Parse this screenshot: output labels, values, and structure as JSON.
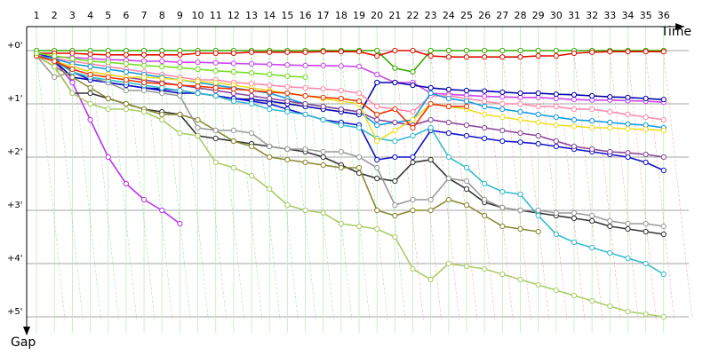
{
  "chart_data": {
    "type": "line",
    "x_label": "Time",
    "y_label": "Gap",
    "x": [
      1,
      2,
      3,
      4,
      5,
      6,
      7,
      8,
      9,
      10,
      11,
      12,
      13,
      14,
      15,
      16,
      17,
      18,
      19,
      20,
      21,
      22,
      23,
      24,
      25,
      26,
      27,
      28,
      29,
      30,
      31,
      32,
      33,
      34,
      35,
      36
    ],
    "xlim": [
      0.45,
      37.4
    ],
    "xticks": [
      1,
      2,
      3,
      4,
      5,
      6,
      7,
      8,
      9,
      10,
      11,
      12,
      13,
      14,
      15,
      16,
      17,
      18,
      19,
      20,
      21,
      22,
      23,
      24,
      25,
      26,
      27,
      28,
      29,
      30,
      31,
      32,
      33,
      34,
      35,
      36
    ],
    "ylim": [
      -0.65,
      5.3
    ],
    "yticks": [
      {
        "value": 0,
        "label": "+0'"
      },
      {
        "value": 1,
        "label": "+1'"
      },
      {
        "value": 2,
        "label": "+2'"
      },
      {
        "value": 3,
        "label": "+3'"
      },
      {
        "value": 4,
        "label": "+4'"
      },
      {
        "value": 5,
        "label": "+5'"
      }
    ],
    "grid": true,
    "series": [
      {
        "color": "#33aa00",
        "values": [
          0,
          0,
          0,
          0,
          0,
          0,
          0,
          0,
          0,
          0,
          0,
          0,
          0,
          0,
          0,
          0,
          0,
          0,
          0,
          0,
          0.33,
          0.4,
          0,
          0,
          0,
          0,
          0,
          0,
          0,
          0,
          0,
          0,
          0,
          0,
          0,
          0
        ]
      },
      {
        "color": "#dd1100",
        "values": [
          0.05,
          0.05,
          0.05,
          0.07,
          0.08,
          0.08,
          0.08,
          0.08,
          0.08,
          0.05,
          0.05,
          0.05,
          0.03,
          0.03,
          0.03,
          0.03,
          0.02,
          0.02,
          0.02,
          0.1,
          0,
          0,
          0.1,
          0.12,
          0.12,
          0.12,
          0.12,
          0.12,
          0.1,
          0.1,
          0.05,
          0.03,
          0.02,
          0.02,
          0.02,
          0.02
        ]
      },
      {
        "color": "#cc44ee",
        "values": [
          0.1,
          0.12,
          0.13,
          0.15,
          0.17,
          0.18,
          0.2,
          0.2,
          0.22,
          0.22,
          0.23,
          0.24,
          0.25,
          0.26,
          0.27,
          0.28,
          0.28,
          0.29,
          0.3,
          0.45,
          0.6,
          0.6,
          0.8,
          0.82,
          0.84,
          0.86,
          0.87,
          0.88,
          0.88,
          0.9,
          0.92,
          0.93,
          0.93,
          0.94,
          0.95,
          0.97
        ]
      },
      {
        "color": "#bb33ee",
        "values": [
          0.1,
          0.2,
          0.6,
          1.3,
          2.0,
          2.5,
          2.8,
          3.0,
          3.25,
          null,
          null,
          null,
          null,
          null,
          null,
          null,
          null,
          null,
          null,
          null,
          null,
          null,
          null,
          null,
          null,
          null,
          null,
          null,
          null,
          null,
          null,
          null,
          null,
          null,
          null,
          null
        ]
      },
      {
        "color": "#0000aa",
        "values": [
          0.1,
          0.2,
          0.5,
          0.55,
          0.6,
          0.65,
          0.7,
          0.75,
          0.8,
          0.8,
          0.85,
          0.9,
          0.92,
          0.95,
          1.0,
          1.05,
          1.1,
          1.15,
          1.2,
          0.6,
          0.6,
          0.65,
          0.7,
          0.73,
          0.75,
          0.76,
          0.78,
          0.8,
          0.8,
          0.82,
          0.83,
          0.85,
          0.87,
          0.88,
          0.9,
          0.92
        ]
      },
      {
        "color": "#1111cc",
        "values": [
          0.05,
          0.15,
          0.4,
          0.55,
          0.6,
          0.65,
          0.7,
          0.72,
          0.75,
          0.8,
          0.85,
          0.9,
          0.95,
          1.0,
          1.1,
          1.2,
          1.3,
          1.35,
          1.4,
          2.05,
          2.0,
          2.0,
          1.5,
          1.55,
          1.6,
          1.65,
          1.7,
          1.72,
          1.75,
          1.8,
          1.85,
          1.9,
          1.95,
          2.0,
          2.1,
          2.25
        ]
      },
      {
        "color": "#333333",
        "values": [
          0.1,
          0.3,
          0.8,
          0.8,
          0.9,
          1.0,
          1.1,
          1.15,
          1.2,
          1.6,
          1.65,
          1.7,
          1.75,
          1.8,
          1.85,
          1.9,
          2.0,
          2.15,
          2.3,
          2.4,
          2.45,
          2.1,
          2.05,
          2.4,
          2.6,
          2.85,
          2.95,
          3.0,
          3.05,
          3.1,
          3.15,
          3.2,
          3.3,
          3.35,
          3.4,
          3.45
        ]
      },
      {
        "color": "#888833",
        "values": [
          0.1,
          0.3,
          0.5,
          0.7,
          0.9,
          1.0,
          1.1,
          1.2,
          1.2,
          1.3,
          1.5,
          1.7,
          1.8,
          2.0,
          2.05,
          2.1,
          2.15,
          2.2,
          2.2,
          3.0,
          3.1,
          3.0,
          3.0,
          2.8,
          2.9,
          3.1,
          3.3,
          3.35,
          3.4,
          null,
          null,
          null,
          null,
          null,
          null,
          null
        ]
      },
      {
        "color": "#999999",
        "values": [
          0.1,
          0.5,
          0.4,
          0.5,
          0.6,
          0.75,
          0.75,
          0.8,
          0.85,
          1.45,
          1.5,
          1.5,
          1.55,
          1.8,
          1.85,
          1.85,
          1.9,
          1.9,
          2.0,
          2.2,
          2.9,
          2.8,
          2.8,
          2.4,
          2.45,
          2.8,
          2.95,
          3.0,
          3.0,
          3.05,
          3.05,
          3.1,
          3.2,
          3.25,
          3.25,
          3.3
        ]
      },
      {
        "color": "#aacc66",
        "values": [
          0.1,
          0.3,
          0.8,
          1.0,
          1.1,
          1.1,
          1.15,
          1.3,
          1.55,
          1.6,
          2.1,
          2.2,
          2.35,
          2.6,
          2.9,
          3.0,
          3.05,
          3.25,
          3.3,
          3.35,
          3.5,
          4.1,
          4.3,
          4.0,
          4.05,
          4.1,
          4.2,
          4.3,
          4.4,
          4.5,
          4.6,
          4.7,
          4.8,
          4.9,
          4.95,
          5.0
        ]
      },
      {
        "color": "#33bbcc",
        "values": [
          0.1,
          0.2,
          0.4,
          0.5,
          0.55,
          0.6,
          0.65,
          0.7,
          0.75,
          0.8,
          0.85,
          0.95,
          1.0,
          1.1,
          1.15,
          1.2,
          1.3,
          1.4,
          1.45,
          1.65,
          1.7,
          1.6,
          1.45,
          2.0,
          2.2,
          2.5,
          2.65,
          2.7,
          3.1,
          3.45,
          3.6,
          3.7,
          3.8,
          3.9,
          4.0,
          4.2
        ]
      },
      {
        "color": "#ff88aa",
        "values": [
          0.1,
          0.15,
          0.2,
          0.25,
          0.3,
          0.35,
          0.4,
          0.45,
          0.5,
          0.55,
          0.55,
          0.6,
          0.62,
          0.65,
          0.68,
          0.7,
          0.72,
          0.75,
          0.8,
          1.05,
          1.1,
          1.15,
          0.85,
          0.85,
          0.9,
          0.95,
          1.0,
          1.0,
          1.05,
          1.05,
          1.1,
          1.1,
          1.15,
          1.2,
          1.25,
          1.3
        ]
      },
      {
        "color": "#1199dd",
        "values": [
          0.1,
          0.15,
          0.25,
          0.3,
          0.35,
          0.4,
          0.45,
          0.5,
          0.55,
          0.6,
          0.65,
          0.7,
          0.75,
          0.8,
          0.9,
          1.0,
          1.05,
          1.1,
          1.15,
          1.4,
          1.35,
          1.3,
          0.8,
          0.9,
          0.95,
          1.05,
          1.1,
          1.15,
          1.2,
          1.25,
          1.3,
          1.32,
          1.35,
          1.38,
          1.4,
          1.45
        ]
      },
      {
        "color": "#884499",
        "values": [
          0.1,
          0.2,
          0.3,
          0.4,
          0.45,
          0.5,
          0.55,
          0.6,
          0.65,
          0.7,
          0.75,
          0.8,
          0.85,
          0.9,
          0.95,
          1.0,
          1.05,
          1.1,
          1.15,
          1.3,
          1.35,
          1.4,
          1.3,
          1.35,
          1.4,
          1.45,
          1.5,
          1.55,
          1.6,
          1.7,
          1.8,
          1.85,
          1.9,
          1.92,
          1.95,
          2.0
        ]
      },
      {
        "color": "#eedd22",
        "values": [
          0.1,
          0.2,
          0.3,
          0.4,
          0.45,
          0.5,
          0.5,
          0.52,
          0.55,
          0.58,
          0.6,
          0.65,
          0.7,
          0.75,
          0.8,
          0.85,
          0.9,
          0.95,
          1.0,
          1.7,
          1.5,
          1.3,
          1.0,
          1.05,
          1.1,
          1.2,
          1.25,
          1.3,
          1.35,
          1.4,
          1.42,
          1.45,
          1.45,
          1.47,
          1.48,
          1.5
        ]
      },
      {
        "color": "#ee3300",
        "values": [
          0.1,
          0.2,
          0.35,
          0.45,
          0.5,
          0.55,
          0.6,
          0.62,
          0.65,
          0.67,
          0.7,
          0.72,
          0.75,
          0.78,
          0.8,
          0.85,
          0.88,
          0.9,
          0.95,
          1.2,
          1.1,
          1.45,
          1.0,
          1.05,
          1.05,
          null,
          null,
          null,
          null,
          null,
          null,
          null,
          null,
          null,
          null,
          null
        ]
      },
      {
        "color": "#77dd22",
        "values": [
          0.05,
          0.1,
          0.15,
          0.2,
          0.22,
          0.25,
          0.28,
          0.3,
          0.32,
          0.35,
          0.38,
          0.4,
          0.42,
          0.45,
          0.48,
          0.5,
          null,
          null,
          null,
          null,
          null,
          null,
          null,
          null,
          null,
          null,
          null,
          null,
          null,
          null,
          null,
          null,
          null,
          null,
          null,
          null
        ]
      }
    ]
  }
}
